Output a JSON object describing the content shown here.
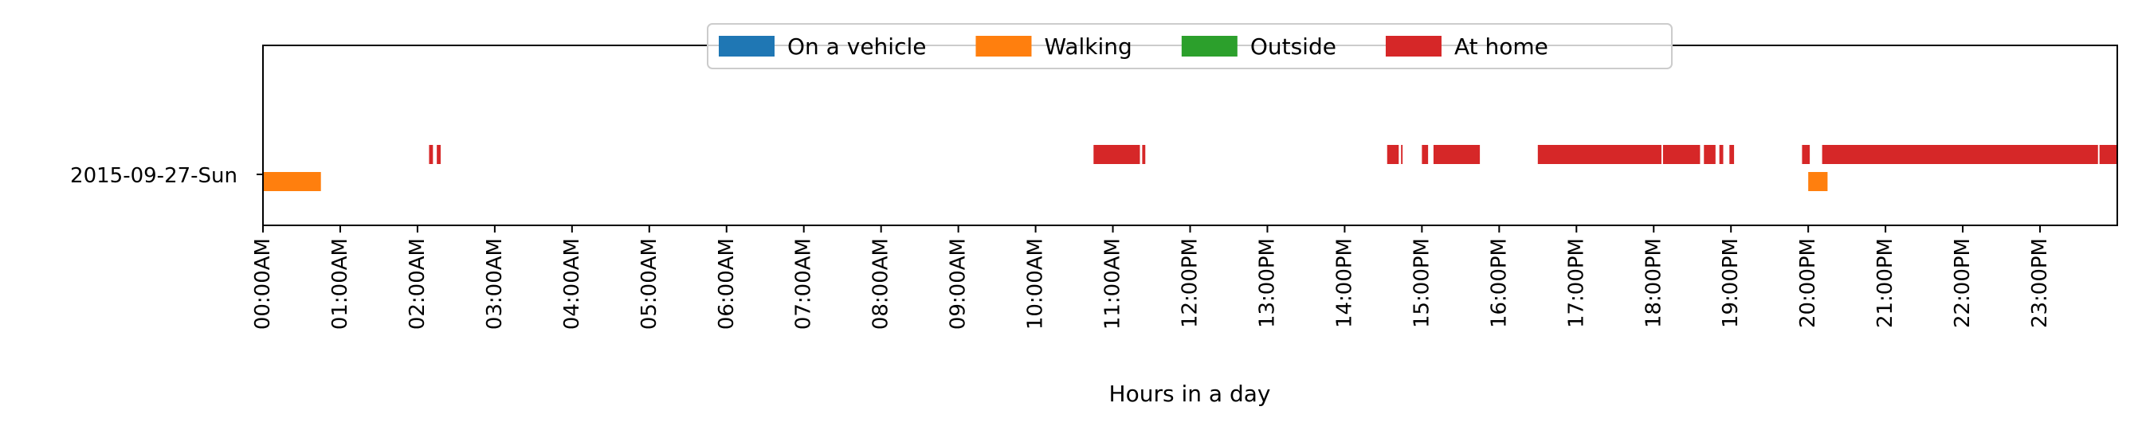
{
  "chart_data": {
    "type": "timeline",
    "title": "",
    "xlabel": "Hours in a day",
    "ylabel": "",
    "x_unit": "hours",
    "xlim": [
      0,
      24
    ],
    "row_label": "2015-09-27-Sun",
    "grid": false,
    "legend_position": "top-center",
    "x_tick_labels": [
      "00:00AM",
      "01:00AM",
      "02:00AM",
      "03:00AM",
      "04:00AM",
      "05:00AM",
      "06:00AM",
      "07:00AM",
      "08:00AM",
      "09:00AM",
      "10:00AM",
      "11:00AM",
      "12:00PM",
      "13:00PM",
      "14:00PM",
      "15:00PM",
      "16:00PM",
      "17:00PM",
      "18:00PM",
      "19:00PM",
      "20:00PM",
      "21:00PM",
      "22:00PM",
      "23:00PM"
    ],
    "series": [
      {
        "name": "On a vehicle",
        "color": "#1f77b4",
        "level": "upper",
        "intervals": []
      },
      {
        "name": "Walking",
        "color": "#ff7f0e",
        "level": "lower",
        "intervals": [
          [
            0.0,
            0.75
          ],
          [
            20.0,
            20.25
          ]
        ]
      },
      {
        "name": "Outside",
        "color": "#2ca02c",
        "level": "upper",
        "intervals": []
      },
      {
        "name": "At home",
        "color": "#d62728",
        "level": "upper",
        "intervals": [
          [
            2.15,
            2.2
          ],
          [
            2.25,
            2.3
          ],
          [
            10.75,
            11.35
          ],
          [
            11.38,
            11.42
          ],
          [
            14.55,
            14.7
          ],
          [
            14.73,
            14.75
          ],
          [
            15.0,
            15.08
          ],
          [
            15.15,
            15.75
          ],
          [
            16.5,
            18.1
          ],
          [
            18.12,
            18.6
          ],
          [
            18.65,
            18.8
          ],
          [
            18.85,
            18.9
          ],
          [
            18.98,
            19.04
          ],
          [
            19.92,
            20.02
          ],
          [
            20.18,
            23.75
          ],
          [
            23.77,
            24.0
          ]
        ]
      }
    ]
  }
}
